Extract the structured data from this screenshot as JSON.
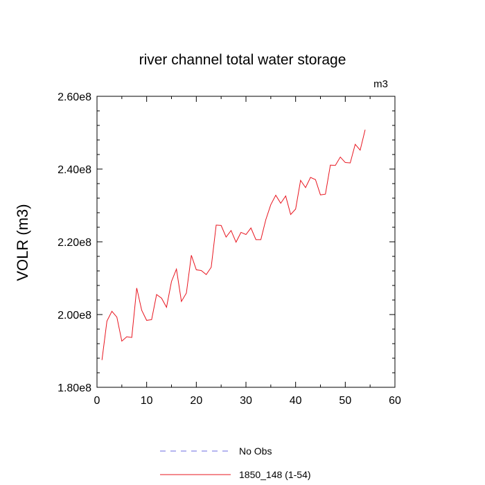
{
  "chart_data": {
    "type": "line",
    "title": "river channel total water storage",
    "units_label": "m3",
    "ylabel": "VOLR  (m3)",
    "xlabel": "",
    "xlim": [
      0,
      60
    ],
    "ylim": [
      180000000,
      260000000
    ],
    "x_ticks": [
      0,
      10,
      20,
      30,
      40,
      50,
      60
    ],
    "x_tick_labels": [
      "0",
      "10",
      "20",
      "30",
      "40",
      "50",
      "60"
    ],
    "y_ticks": [
      180000000,
      200000000,
      220000000,
      240000000,
      260000000
    ],
    "y_tick_labels": [
      "1.80e8",
      "2.00e8",
      "2.20e8",
      "2.40e8",
      "2.60e8"
    ],
    "x_minor_step": 5,
    "y_minor_step": 4000000,
    "grid": false,
    "legend_position": "bottom-center",
    "series": [
      {
        "name": "No Obs",
        "color": "#6a6ae0",
        "dash": "dashed",
        "x": [],
        "y": []
      },
      {
        "name": "1850_148 (1-54)",
        "color": "#e8141e",
        "dash": "solid",
        "x": [
          1,
          2,
          3,
          4,
          5,
          6,
          7,
          8,
          9,
          10,
          11,
          12,
          13,
          14,
          15,
          16,
          17,
          18,
          19,
          20,
          21,
          22,
          23,
          24,
          25,
          26,
          27,
          28,
          29,
          30,
          31,
          32,
          33,
          34,
          35,
          36,
          37,
          38,
          39,
          40,
          41,
          42,
          43,
          44,
          45,
          46,
          47,
          48,
          49,
          50,
          51,
          52,
          53,
          54
        ],
        "y": [
          187500000,
          198200000,
          200900000,
          199300000,
          192700000,
          193900000,
          193700000,
          207300000,
          201200000,
          198400000,
          198600000,
          205500000,
          204500000,
          202000000,
          209100000,
          212500000,
          203600000,
          205900000,
          216300000,
          212300000,
          212100000,
          211000000,
          213000000,
          224600000,
          224500000,
          221300000,
          223100000,
          219900000,
          222600000,
          222000000,
          223800000,
          220600000,
          220600000,
          226100000,
          230200000,
          232800000,
          230600000,
          232600000,
          227500000,
          229000000,
          236900000,
          234900000,
          237700000,
          237100000,
          232900000,
          233100000,
          241100000,
          241000000,
          243300000,
          241800000,
          241700000,
          246800000,
          245200000,
          250800000
        ]
      }
    ]
  }
}
